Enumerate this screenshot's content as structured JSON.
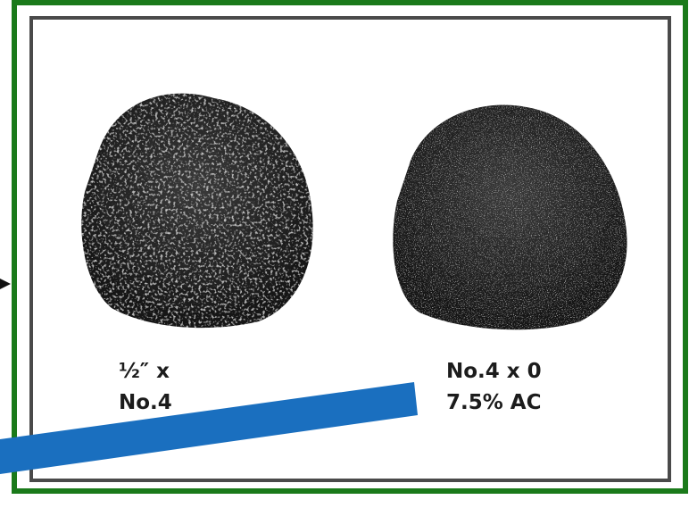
{
  "labels": {
    "left": [
      "½″ x",
      "No.4"
    ],
    "right": [
      "No.4 x 0",
      "7.5% AC"
    ]
  }
}
